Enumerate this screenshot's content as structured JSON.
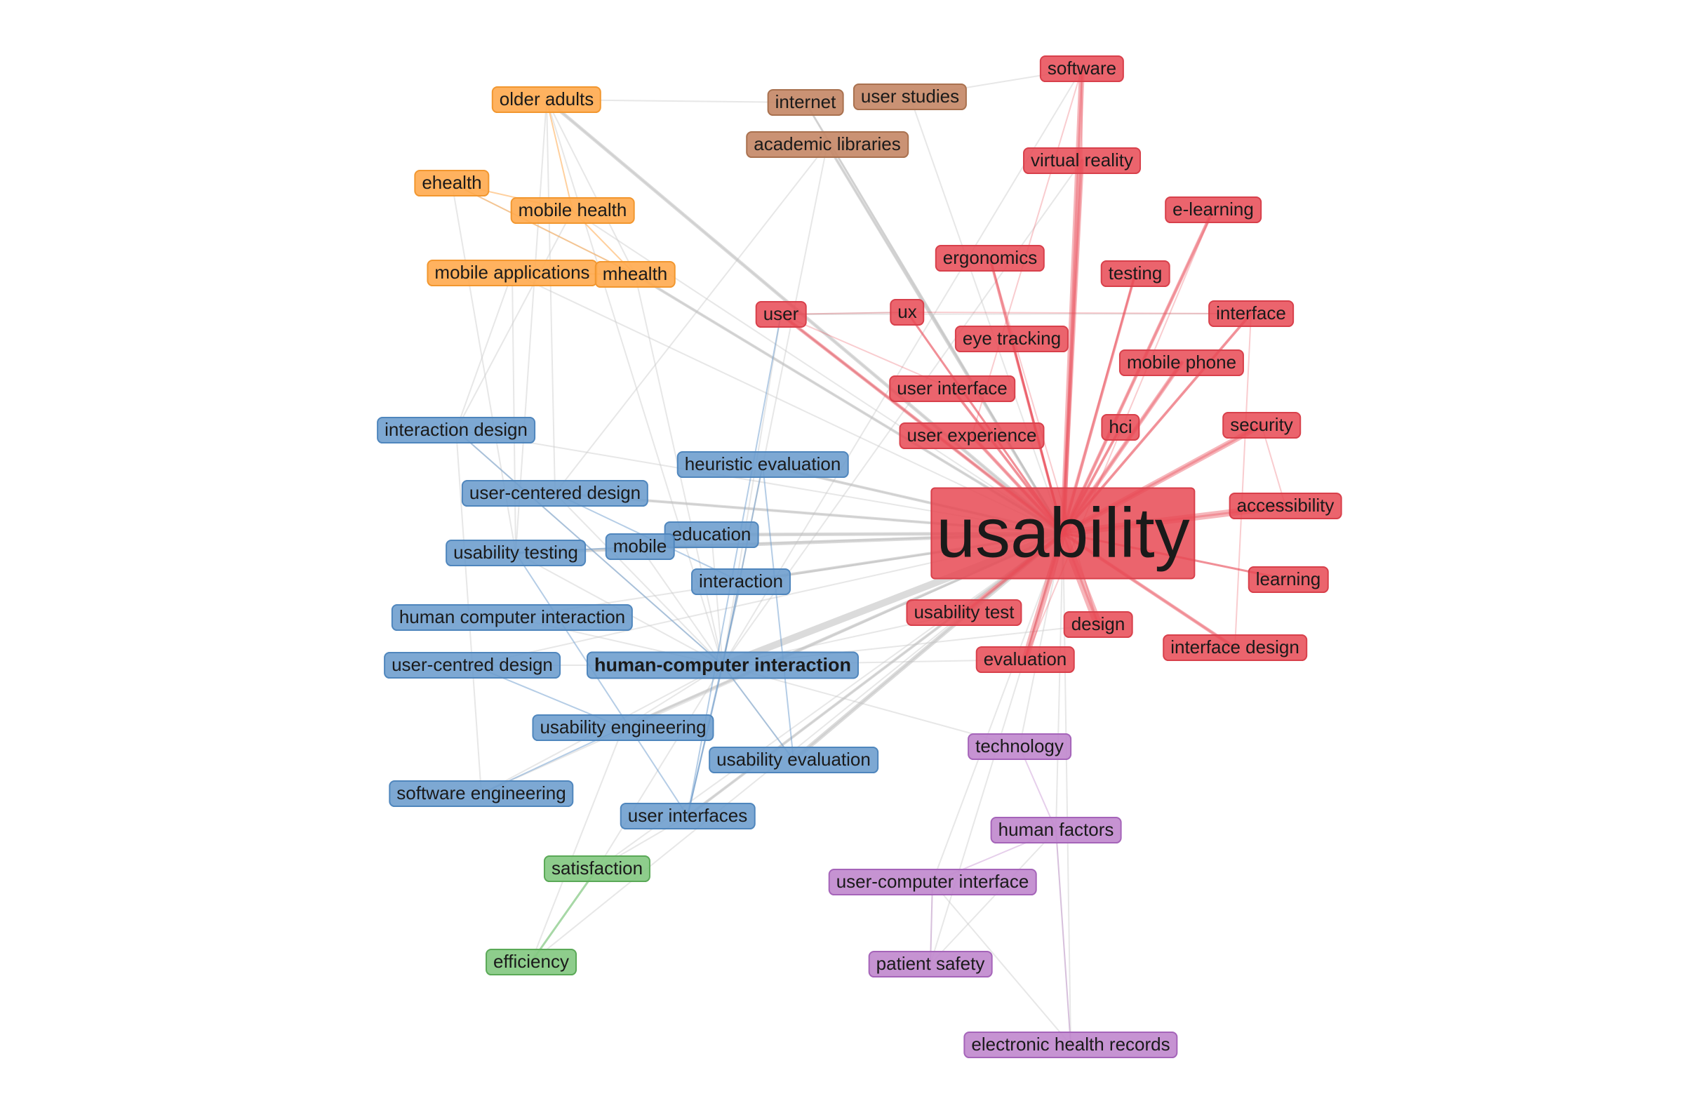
{
  "colors": {
    "red": "#e84954",
    "blue": "#6b9ccd",
    "orange": "#ffaa4e",
    "brown": "#c48665",
    "purple": "#c087cd",
    "green": "#82c880",
    "edge_default": "#cfcfcf"
  },
  "nodes": [
    {
      "id": "usability",
      "label": "usability",
      "cluster": "red"
    },
    {
      "id": "software",
      "label": "software",
      "cluster": "red"
    },
    {
      "id": "virtual_reality",
      "label": "virtual reality",
      "cluster": "red"
    },
    {
      "id": "e_learning",
      "label": "e-learning",
      "cluster": "red"
    },
    {
      "id": "ergonomics",
      "label": "ergonomics",
      "cluster": "red"
    },
    {
      "id": "testing",
      "label": "testing",
      "cluster": "red"
    },
    {
      "id": "user",
      "label": "user",
      "cluster": "red"
    },
    {
      "id": "ux",
      "label": "ux",
      "cluster": "red"
    },
    {
      "id": "interface",
      "label": "interface",
      "cluster": "red"
    },
    {
      "id": "eye_tracking",
      "label": "eye tracking",
      "cluster": "red"
    },
    {
      "id": "mobile_phone",
      "label": "mobile phone",
      "cluster": "red"
    },
    {
      "id": "user_interface",
      "label": "user interface",
      "cluster": "red"
    },
    {
      "id": "hci",
      "label": "hci",
      "cluster": "red"
    },
    {
      "id": "security",
      "label": "security",
      "cluster": "red"
    },
    {
      "id": "user_experience",
      "label": "user experience",
      "cluster": "red"
    },
    {
      "id": "accessibility",
      "label": "accessibility",
      "cluster": "red"
    },
    {
      "id": "learning",
      "label": "learning",
      "cluster": "red"
    },
    {
      "id": "usability_test",
      "label": "usability test",
      "cluster": "red"
    },
    {
      "id": "design",
      "label": "design",
      "cluster": "red"
    },
    {
      "id": "evaluation",
      "label": "evaluation",
      "cluster": "red"
    },
    {
      "id": "interface_design",
      "label": "interface design",
      "cluster": "red"
    },
    {
      "id": "older_adults",
      "label": "older adults",
      "cluster": "orange"
    },
    {
      "id": "ehealth",
      "label": "ehealth",
      "cluster": "orange"
    },
    {
      "id": "mobile_health",
      "label": "mobile health",
      "cluster": "orange"
    },
    {
      "id": "mobile_applications",
      "label": "mobile applications",
      "cluster": "orange"
    },
    {
      "id": "mhealth",
      "label": "mhealth",
      "cluster": "orange"
    },
    {
      "id": "internet",
      "label": "internet",
      "cluster": "brown"
    },
    {
      "id": "user_studies",
      "label": "user studies",
      "cluster": "brown"
    },
    {
      "id": "academic_libraries",
      "label": "academic libraries",
      "cluster": "brown"
    },
    {
      "id": "interaction_design",
      "label": "interaction design",
      "cluster": "blue"
    },
    {
      "id": "heuristic_evaluation",
      "label": "heuristic evaluation",
      "cluster": "blue"
    },
    {
      "id": "user_centered_design",
      "label": "user-centered design",
      "cluster": "blue"
    },
    {
      "id": "education",
      "label": "education",
      "cluster": "blue"
    },
    {
      "id": "mobile",
      "label": "mobile",
      "cluster": "blue"
    },
    {
      "id": "usability_testing",
      "label": "usability testing",
      "cluster": "blue"
    },
    {
      "id": "interaction",
      "label": "interaction",
      "cluster": "blue"
    },
    {
      "id": "human_computer_interaction_sp",
      "label": "human computer interaction",
      "cluster": "blue"
    },
    {
      "id": "user_centred_design",
      "label": "user-centred design",
      "cluster": "blue"
    },
    {
      "id": "hci_full",
      "label": "human-computer interaction",
      "cluster": "blue"
    },
    {
      "id": "usability_engineering",
      "label": "usability engineering",
      "cluster": "blue"
    },
    {
      "id": "usability_evaluation",
      "label": "usability evaluation",
      "cluster": "blue"
    },
    {
      "id": "software_engineering",
      "label": "software engineering",
      "cluster": "blue"
    },
    {
      "id": "user_interfaces",
      "label": "user interfaces",
      "cluster": "blue"
    },
    {
      "id": "satisfaction",
      "label": "satisfaction",
      "cluster": "green"
    },
    {
      "id": "efficiency",
      "label": "efficiency",
      "cluster": "green"
    },
    {
      "id": "technology",
      "label": "technology",
      "cluster": "purple"
    },
    {
      "id": "human_factors",
      "label": "human factors",
      "cluster": "purple"
    },
    {
      "id": "user_computer_interface",
      "label": "user-computer interface",
      "cluster": "purple"
    },
    {
      "id": "patient_safety",
      "label": "patient safety",
      "cluster": "purple"
    },
    {
      "id": "electronic_health_records",
      "label": "electronic health records",
      "cluster": "purple"
    }
  ]
}
